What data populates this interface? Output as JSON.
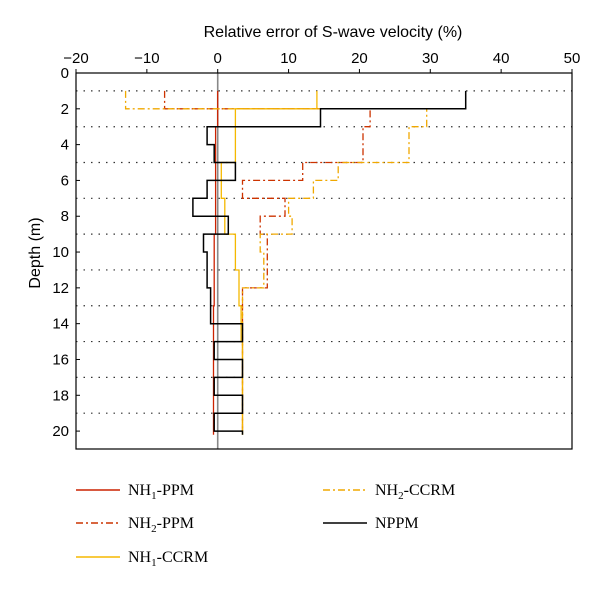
{
  "chart_data": {
    "type": "line",
    "title": "",
    "xlabel": "Relative error of S-wave velocity (%)",
    "ylabel": "Depth (m)",
    "xlim": [
      -20,
      50
    ],
    "ylim": [
      0,
      21
    ],
    "y_inverted": true,
    "x_axis_position": "top",
    "x_ticks": [
      -20,
      -10,
      0,
      10,
      20,
      30,
      40,
      50
    ],
    "y_ticks": [
      0,
      2,
      4,
      6,
      8,
      10,
      12,
      14,
      16,
      18,
      20
    ],
    "grid": "dotted horizontal lines at odd depths",
    "reference_line_x": 0,
    "legend_position": "below",
    "series": [
      {
        "name": "NH1-PPM",
        "label_main": "NH",
        "label_sub": "1",
        "label_tail": "-PPM",
        "color": "#cc2200",
        "style": "solid",
        "steps": [
          [
            1,
            3,
            0
          ],
          [
            3,
            5,
            -0.3
          ],
          [
            5,
            7,
            -0.3
          ],
          [
            7,
            9,
            -0.3
          ],
          [
            9,
            11,
            -0.5
          ],
          [
            11,
            13,
            -0.5
          ],
          [
            13,
            15,
            -0.6
          ],
          [
            15,
            17,
            -0.6
          ],
          [
            17,
            19,
            -0.6
          ],
          [
            19,
            20.2,
            -0.6
          ]
        ]
      },
      {
        "name": "NH2-PPM",
        "label_main": "NH",
        "label_sub": "2",
        "label_tail": "-PPM",
        "color": "#cc3300",
        "style": "dashdot",
        "steps": [
          [
            1,
            2,
            -7.5
          ],
          [
            2,
            3,
            21.5
          ],
          [
            3,
            5,
            20.5
          ],
          [
            5,
            6,
            12
          ],
          [
            6,
            7,
            3.5
          ],
          [
            7,
            8,
            9.5
          ],
          [
            8,
            9,
            6
          ],
          [
            9,
            11,
            7
          ],
          [
            11,
            12,
            7
          ],
          [
            12,
            14,
            3.5
          ],
          [
            14,
            16,
            3.5
          ],
          [
            16,
            18,
            3.5
          ],
          [
            18,
            20,
            3.5
          ]
        ]
      },
      {
        "name": "NH1-CCRM",
        "label_main": "NH",
        "label_sub": "1",
        "label_tail": "-CCRM",
        "color": "#f5b800",
        "style": "solid",
        "steps": [
          [
            1,
            2,
            14
          ],
          [
            2,
            3,
            2.5
          ],
          [
            3,
            5,
            2.5
          ],
          [
            5,
            7,
            0.5
          ],
          [
            7,
            9,
            1
          ],
          [
            9,
            11,
            2.5
          ],
          [
            11,
            13,
            3
          ],
          [
            13,
            15,
            3.3
          ],
          [
            15,
            17,
            3.5
          ],
          [
            17,
            19,
            3.5
          ],
          [
            19,
            20.2,
            3.5
          ]
        ]
      },
      {
        "name": "NH2-CCRM",
        "label_main": "NH",
        "label_sub": "2",
        "label_tail": "-CCRM",
        "color": "#f0a800",
        "style": "dashdot",
        "steps": [
          [
            1,
            2,
            -13
          ],
          [
            2,
            3,
            29.5
          ],
          [
            3,
            5,
            27
          ],
          [
            5,
            6,
            17
          ],
          [
            6,
            7,
            13.5
          ],
          [
            7,
            8,
            10
          ],
          [
            8,
            9,
            10.5
          ],
          [
            9,
            10,
            6
          ],
          [
            10,
            11,
            6.5
          ],
          [
            11,
            12,
            6.5
          ],
          [
            12,
            13,
            3.5
          ],
          [
            13,
            15,
            3.5
          ],
          [
            15,
            20,
            3.5
          ]
        ]
      },
      {
        "name": "NPPM",
        "label_main": "NPPM",
        "label_sub": "",
        "label_tail": "",
        "color": "#000000",
        "style": "solid",
        "steps": [
          [
            1,
            2,
            35
          ],
          [
            2,
            3,
            14.5
          ],
          [
            3,
            4,
            -1.5
          ],
          [
            4,
            5,
            -0.5
          ],
          [
            5,
            6,
            2.5
          ],
          [
            6,
            7,
            -1.5
          ],
          [
            7,
            8,
            -3.5
          ],
          [
            8,
            9,
            1.5
          ],
          [
            9,
            10,
            -2
          ],
          [
            10,
            11,
            -1.5
          ],
          [
            11,
            12,
            -1.5
          ],
          [
            12,
            13,
            -1
          ],
          [
            13,
            14,
            -1
          ],
          [
            14,
            15,
            3.5
          ],
          [
            15,
            16,
            -0.5
          ],
          [
            16,
            17,
            3.5
          ],
          [
            17,
            18,
            -0.5
          ],
          [
            18,
            19,
            3.5
          ],
          [
            19,
            20,
            -0.5
          ],
          [
            20,
            20.2,
            3.5
          ]
        ]
      }
    ]
  }
}
